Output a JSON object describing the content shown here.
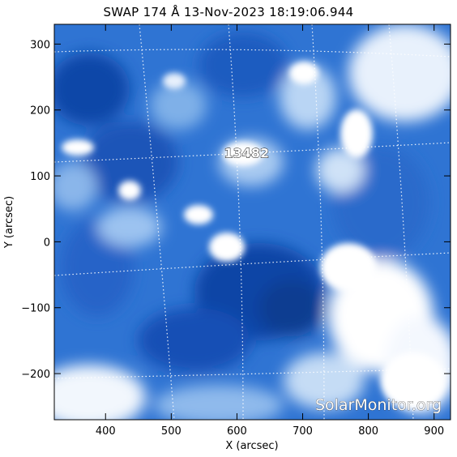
{
  "title": "SWAP 174 Å 13-Nov-2023 18:19:06.944",
  "axes": {
    "x_label": "X (arcsec)",
    "y_label": "Y (arcsec)",
    "x_ticks": [
      "400",
      "500",
      "600",
      "700",
      "800",
      "900"
    ],
    "y_ticks": [
      "300",
      "200",
      "100",
      "0",
      "−100",
      "−200"
    ],
    "x_range": [
      322,
      925
    ],
    "y_range": [
      -270,
      330
    ]
  },
  "active_region": {
    "number": "13482",
    "x": 590,
    "y": 135
  },
  "watermark": "SolarMonitor.org",
  "colors": {
    "deep": "#0b3d91",
    "mid": "#2a6fd0",
    "light": "#9cc3f0",
    "bright": "#ffffff"
  }
}
